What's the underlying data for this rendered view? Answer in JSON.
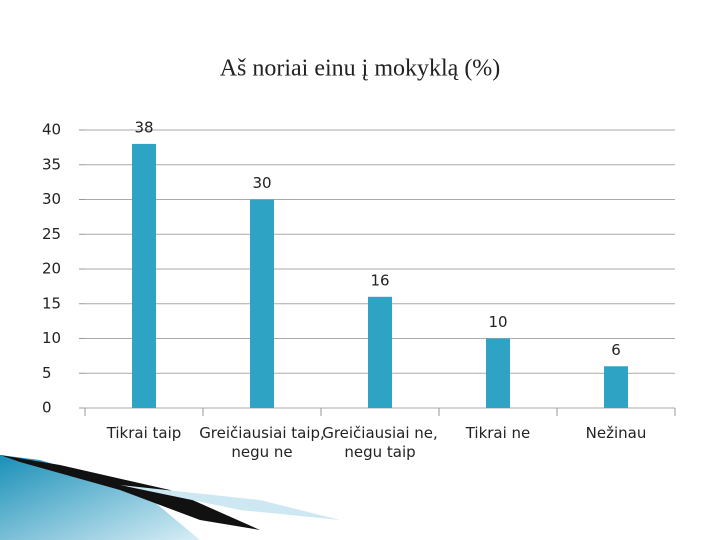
{
  "chart_data": {
    "type": "bar",
    "title": "Aš noriai einu į mokyklą (%)",
    "categories": [
      "Tikrai taip",
      "Greičiausiai taip, negu ne",
      "Greičiausiai ne, negu taip",
      "Tikrai ne",
      "Nežinau"
    ],
    "values": [
      38,
      30,
      16,
      10,
      6
    ],
    "color": "#2ea3c4",
    "ylim": [
      0,
      40
    ],
    "yticks": [
      0,
      5,
      10,
      15,
      20,
      25,
      30,
      35,
      40
    ],
    "grid": true
  }
}
